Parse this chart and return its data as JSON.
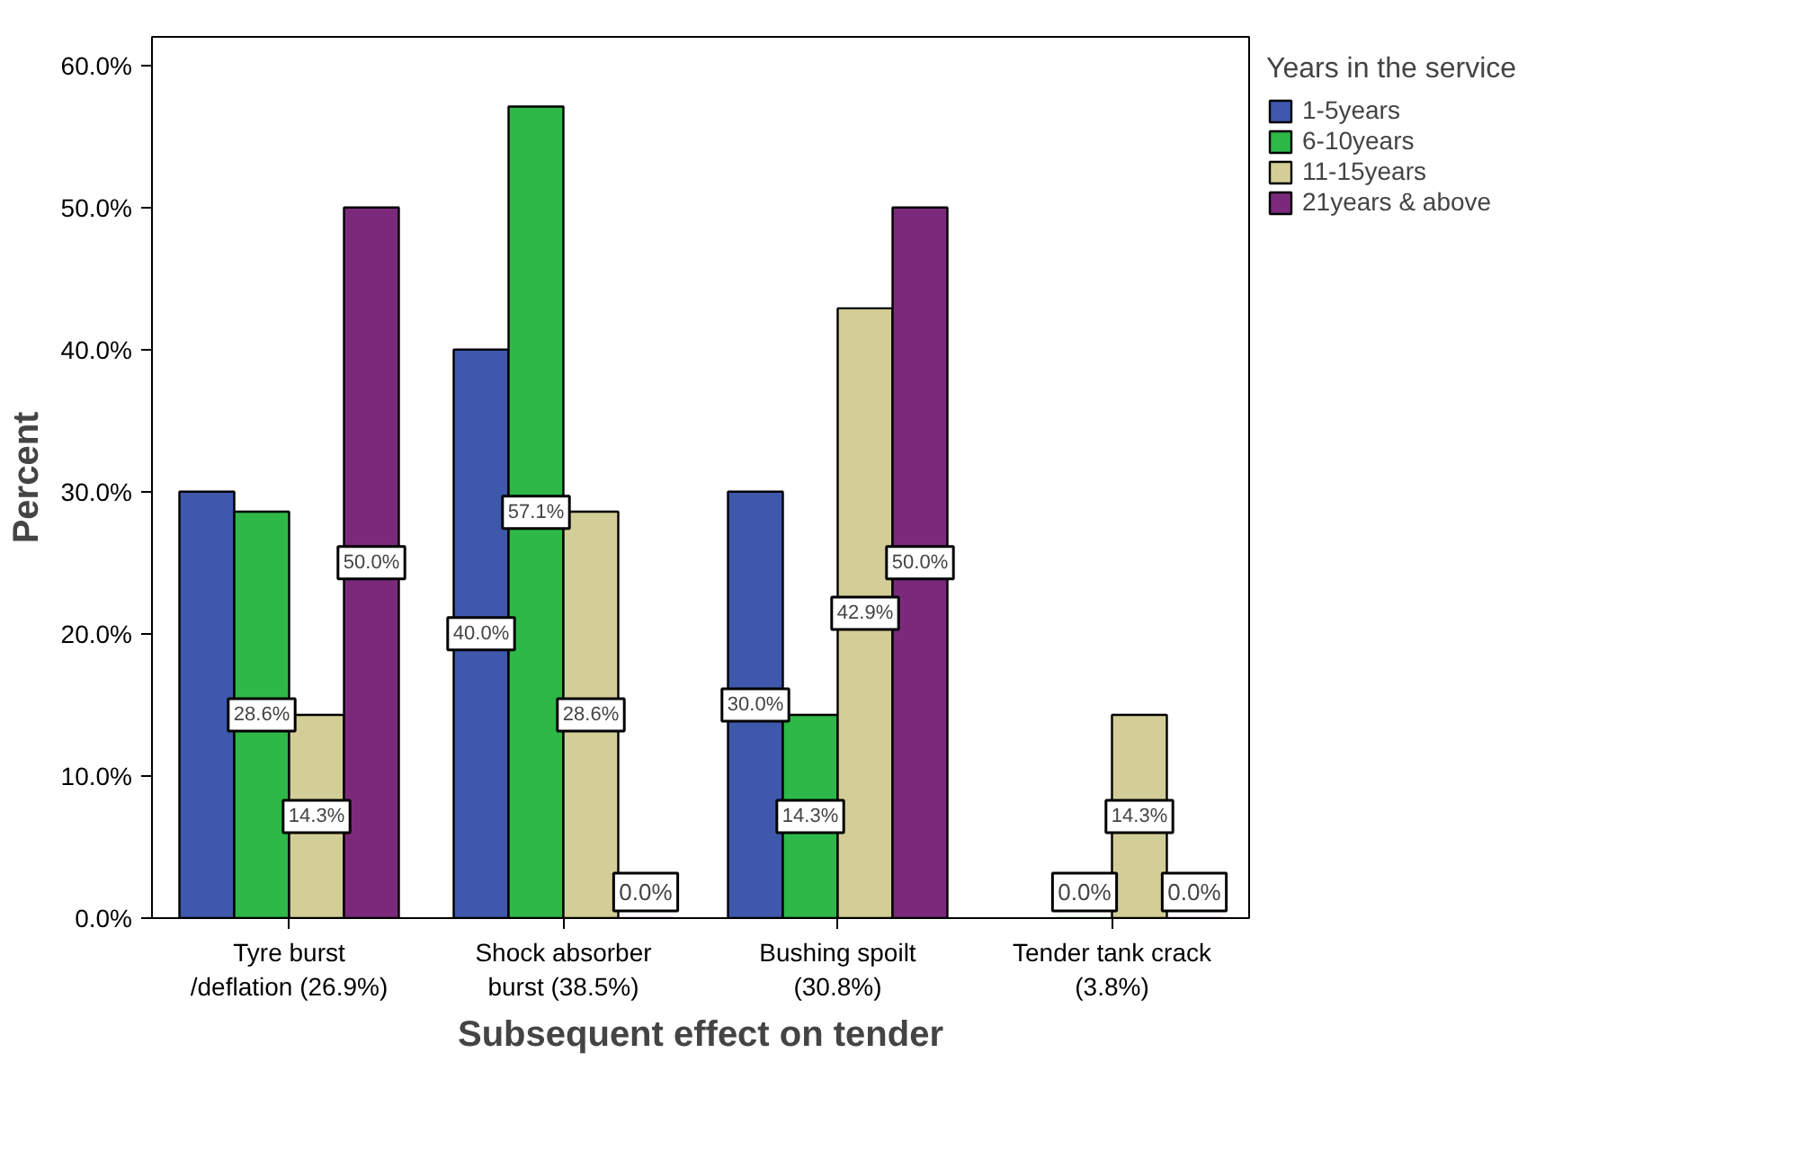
{
  "chart_data": {
    "type": "bar",
    "xlabel": "Subsequent effect on tender",
    "ylabel": "Percent",
    "legend_title": "Years in the service",
    "legend": "top right",
    "grid": false,
    "categories": [
      "Tyre burst\n/deflation (26.9%)",
      "Shock absorber\nburst (38.5%)",
      "Bushing spoilt\n(30.8%)",
      "Tender tank crack\n(3.8%)"
    ],
    "ylim": [
      0,
      62
    ],
    "yticks": [
      {
        "value": 0,
        "label": "0.0%"
      },
      {
        "value": 10,
        "label": "10.0%"
      },
      {
        "value": 20,
        "label": "20.0%"
      },
      {
        "value": 30,
        "label": "30.0%"
      },
      {
        "value": 40,
        "label": "40.0%"
      },
      {
        "value": 50,
        "label": "50.0%"
      },
      {
        "value": 60,
        "label": "60.0%"
      }
    ],
    "series": [
      {
        "name": "1-5years",
        "color": "#3e58ac",
        "values": [
          30.0,
          40.0,
          30.0,
          null
        ],
        "value_labels": [
          null,
          "40.0%",
          "30.0%",
          null
        ]
      },
      {
        "name": "6-10years",
        "color": "#2eb848",
        "values": [
          28.6,
          57.1,
          14.3,
          0.0
        ],
        "value_labels": [
          "28.6%",
          "57.1%",
          "14.3%",
          "0.0%"
        ]
      },
      {
        "name": "11-15years",
        "color": "#d3ce97",
        "values": [
          14.3,
          28.6,
          42.9,
          14.3
        ],
        "value_labels": [
          "14.3%",
          "28.6%",
          "42.9%",
          "14.3%"
        ]
      },
      {
        "name": "21years & above",
        "color": "#7b2a7b",
        "values": [
          50.0,
          0.0,
          50.0,
          0.0
        ],
        "value_labels": [
          "50.0%",
          "0.0%",
          "50.0%",
          "0.0%"
        ]
      }
    ]
  }
}
